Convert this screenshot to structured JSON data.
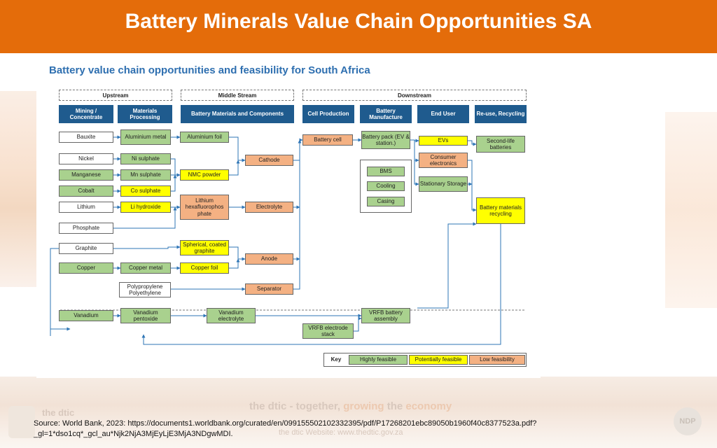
{
  "header": {
    "title": "Battery Minerals Value Chain Opportunities SA"
  },
  "diagram": {
    "subtitle": "Battery value chain opportunities and feasibility for South Africa",
    "sections": {
      "upstream": "Upstream",
      "midstream": "Middle Stream",
      "downstream": "Downstream"
    },
    "columns": {
      "mining": "Mining / Concentrate",
      "processing": "Materials Processing",
      "battery_materials": "Battery Materials and Components",
      "cell": "Cell Production",
      "manufacture": "Battery Manufacture",
      "end_user": "End User",
      "reuse": "Re-use, Recycling"
    },
    "nodes": {
      "bauxite": "Bauxite",
      "nickel": "Nickel",
      "manganese": "Manganese",
      "cobalt": "Cobalt",
      "lithium": "Lithium",
      "phosphate": "Phosphate",
      "graphite": "Graphite",
      "copper": "Copper",
      "polymer": "Polypropylene Polyethylene",
      "vanadium": "Vanadium",
      "al_metal": "Aluminium metal",
      "ni_sulphate": "Ni sulphate",
      "mn_sulphate": "Mn sulphate",
      "co_sulphate": "Co sulphate",
      "li_hydroxide": "Li hydroxide",
      "copper_metal": "Copper metal",
      "vanadium_pentoxide": "Vanadium pentoxide",
      "al_foil": "Aluminium foil",
      "nmc_powder": "NMC powder",
      "lithium_hex": "Lithium hexafluorophos phate",
      "spherical_graphite": "Spherical, coated graphite",
      "copper_foil": "Copper foil",
      "cathode": "Cathode",
      "electrolyte": "Electrolyte",
      "anode": "Anode",
      "separator": "Separator",
      "vanadium_electrolyte": "Vanadium electrolyte",
      "battery_cell": "Battery cell",
      "vrfb_stack": "VRFB electrode stack",
      "battery_pack": "Battery pack (EV & station.)",
      "bms": "BMS",
      "cooling": "Cooling",
      "casing": "Casing",
      "vrfb_assembly": "VRFB battery assembly",
      "evs": "EVs",
      "consumer_electronics": "Consumer electronics",
      "stationary_storage": "Stationary Storage",
      "second_life": "Second-life batteries",
      "recycling": "Battery materials recycling"
    },
    "key": {
      "label": "Key",
      "high": "Highly feasible",
      "potential": "Potentially feasible",
      "low": "Low feasibility"
    },
    "colors": {
      "high": "#a9d18e",
      "potential": "#ffff00",
      "low": "#f4b183",
      "header": "#1f5b8e"
    }
  },
  "footer": {
    "dtic_prefix": "the dtic",
    "slogan_sep": "- together,",
    "slogan_growing": "growing",
    "slogan_the": "the",
    "slogan_economy": "economy",
    "website": "the dtic Website: www.thedtic.gov.za",
    "logo_text": "the dtic",
    "ndp": "NDP",
    "source": "Source: World Bank, 2023: https://documents1.worldbank.org/curated/en/099155502102332395/pdf/P17268201ebc89050b1960f40c8377523a.pdf?_gl=1*dso1cq*_gcl_au*Njk2NjA3MjEyLjE3MjA3NDgwMDI."
  }
}
